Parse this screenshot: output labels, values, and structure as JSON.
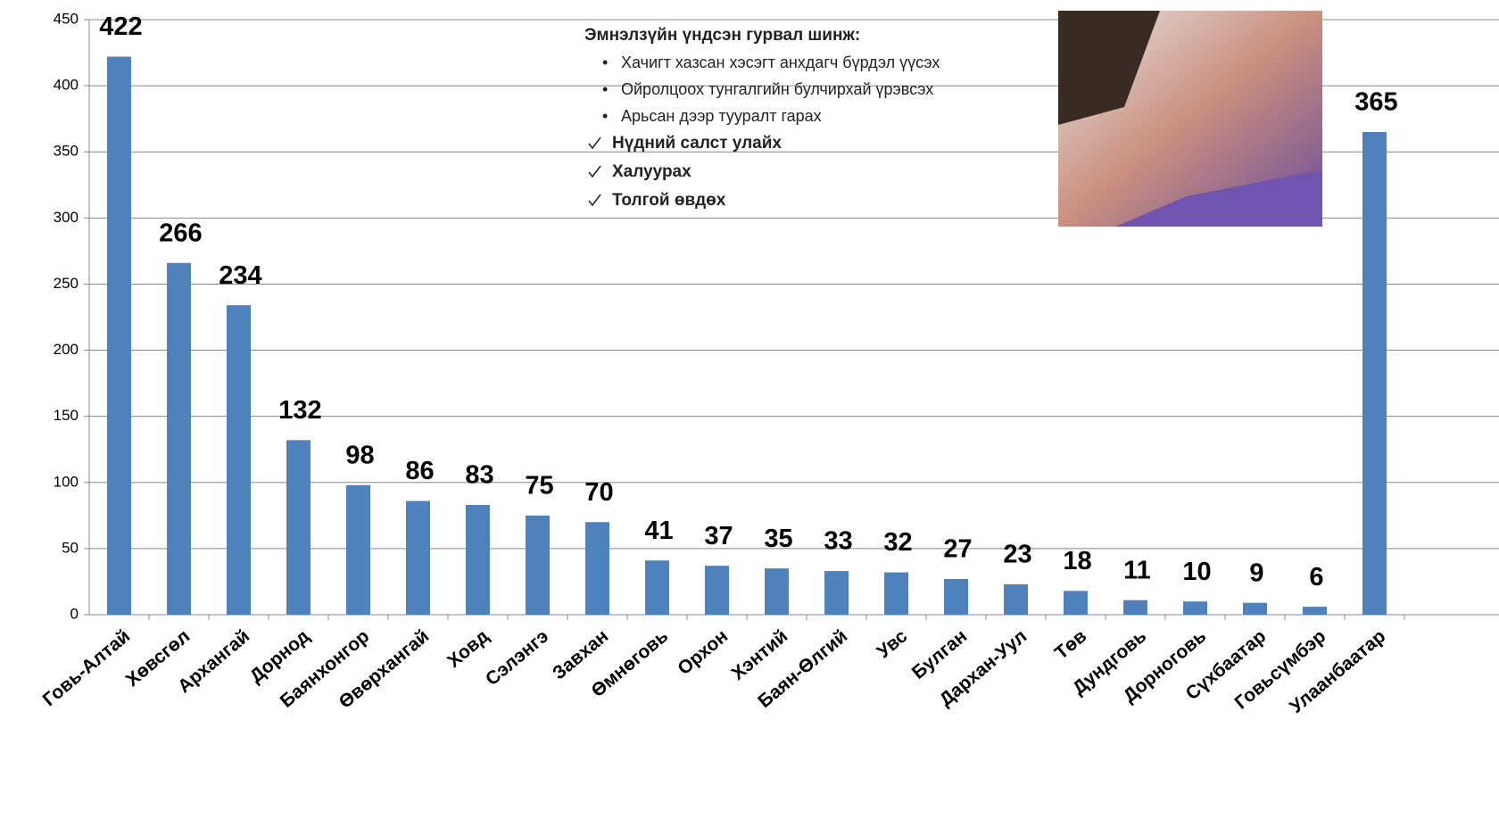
{
  "chart_data": {
    "type": "bar",
    "categories": [
      "Говь-Алтай",
      "Хөвсгөл",
      "Архангай",
      "Дорнод",
      "Баянхонгор",
      "Өвөрхангай",
      "Ховд",
      "Сэлэнгэ",
      "Завхан",
      "Өмнөговь",
      "Орхон",
      "Хэнтий",
      "Баян-Өлгий",
      "Увс",
      "Булган",
      "Дархан-Уул",
      "Төв",
      "Дундговь",
      "Дорноговь",
      "Сүхбаатар",
      "Говьсүмбэр",
      "Улаанбаатар"
    ],
    "values": [
      422,
      266,
      234,
      132,
      98,
      86,
      83,
      75,
      70,
      41,
      37,
      35,
      33,
      32,
      27,
      23,
      18,
      11,
      10,
      9,
      6,
      365
    ],
    "color": "#4f81bd",
    "ylim": [
      0,
      450
    ],
    "yticks": [
      0,
      50,
      100,
      150,
      200,
      250,
      300,
      350,
      400,
      450
    ],
    "grid": true,
    "annotation": {
      "title": "Эмнэлзүйн үндсэн гурвал шинж:",
      "bullets": [
        "Хачигт хазсан хэсэгт анхдагч бүрдэл  үүсэх",
        "Ойролцоох тунгалгийн булчирхай үрэвсэх",
        "Арьсан дээр тууралт гарах"
      ],
      "checks": [
        "Нүдний салст улайх",
        "Халуурах",
        "Толгой өвдөх"
      ]
    }
  }
}
